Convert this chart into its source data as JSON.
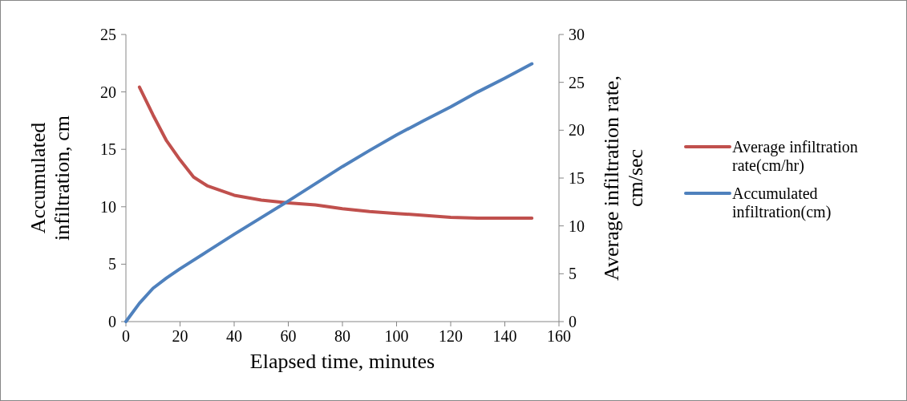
{
  "chart_data": {
    "type": "line",
    "xlabel": "Elapsed time, minutes",
    "ylabel": "Accumulated infiltration, cm",
    "y2label": "Average infiltration rate, cm/sec",
    "xlim": [
      0,
      160
    ],
    "xticks": [
      0,
      20,
      40,
      60,
      80,
      100,
      120,
      140,
      160
    ],
    "ylim": [
      0,
      25
    ],
    "yticks": [
      0,
      5,
      10,
      15,
      20,
      25
    ],
    "y2lim": [
      0,
      30
    ],
    "y2ticks": [
      0,
      5,
      10,
      15,
      20,
      25,
      30
    ],
    "grid": false,
    "legend": "right",
    "marker": "none",
    "line_style": "solid",
    "series": [
      {
        "name": "Average infiltration rate(cm/hr)",
        "color": "#c0504d",
        "axis": "y2",
        "x": [
          5,
          10,
          15,
          20,
          25,
          30,
          40,
          50,
          60,
          70,
          80,
          90,
          100,
          110,
          120,
          130,
          140,
          150
        ],
        "values": [
          24.5,
          21.6,
          18.9,
          16.9,
          15.1,
          14.2,
          13.2,
          12.7,
          12.4,
          12.2,
          11.8,
          11.5,
          11.3,
          11.1,
          10.9,
          10.8,
          10.8,
          10.8
        ]
      },
      {
        "name": "Accumulated infiltration(cm)",
        "color": "#4f81bd",
        "x": [
          0,
          5,
          10,
          15,
          20,
          30,
          40,
          50,
          60,
          70,
          80,
          90,
          100,
          110,
          120,
          130,
          140,
          150
        ],
        "values": [
          0,
          1.6,
          2.9,
          3.8,
          4.6,
          6.1,
          7.6,
          9.05,
          10.5,
          12.0,
          13.5,
          14.9,
          16.25,
          17.5,
          18.7,
          20.0,
          21.2,
          22.45
        ]
      }
    ]
  }
}
